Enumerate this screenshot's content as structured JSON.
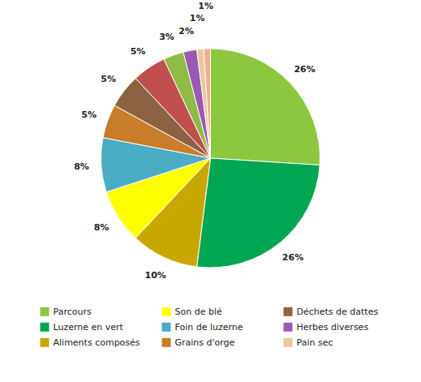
{
  "chart_data": {
    "type": "pie",
    "categories": [
      "Parcours",
      "Luzerne en vert",
      "Aliments composés",
      "Son de blé",
      "Foin de luzerne",
      "Grains d'orge",
      "Déchets de dattes",
      null,
      null,
      "Herbes diverses",
      "Pain sec",
      null
    ],
    "values": [
      26,
      26,
      10,
      8,
      8,
      5,
      5,
      5,
      3,
      2,
      1,
      1
    ],
    "value_labels": [
      "26%",
      "26%",
      "10%",
      "8%",
      "8%",
      "5%",
      "5%",
      "5%",
      "3%",
      "2%",
      "1%",
      "1%"
    ],
    "colors": [
      "#8dc63f",
      "#00a651",
      "#c8a800",
      "#ffff00",
      "#4bacc6",
      "#c87d2a",
      "#8b6340",
      "#c0504d",
      "#8fbc45",
      "#9b59b6",
      "#e8c8a0",
      "#f0b090"
    ],
    "data_labels": true,
    "legend": "bottom"
  }
}
